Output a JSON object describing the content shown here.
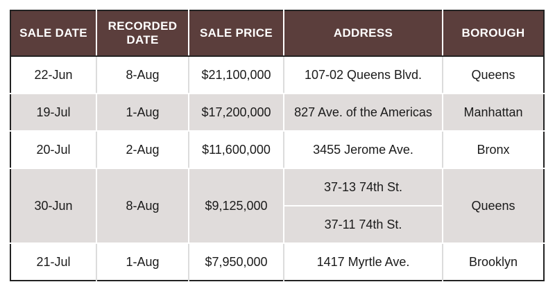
{
  "headers": {
    "sale_date": "SALE DATE",
    "recorded_date_line1": "RECORDED",
    "recorded_date_line2": "DATE",
    "sale_price": "SALE PRICE",
    "address": "ADDRESS",
    "borough": "BOROUGH"
  },
  "rows": [
    {
      "sale_date": "22-Jun",
      "recorded_date": "8-Aug",
      "sale_price": "$21,100,000",
      "address": "107-02 Queens Blvd.",
      "borough": "Queens"
    },
    {
      "sale_date": "19-Jul",
      "recorded_date": "1-Aug",
      "sale_price": "$17,200,000",
      "address": "827 Ave. of the Americas",
      "borough": "Manhattan"
    },
    {
      "sale_date": "20-Jul",
      "recorded_date": "2-Aug",
      "sale_price": "$11,600,000",
      "address": "3455 Jerome Ave.",
      "borough": "Bronx"
    },
    {
      "sale_date": "30-Jun",
      "recorded_date": "8-Aug",
      "sale_price": "$9,125,000",
      "address_1": "37-13 74th St.",
      "address_2": "37-11 74th St.",
      "borough": "Queens"
    },
    {
      "sale_date": "21-Jul",
      "recorded_date": "1-Aug",
      "sale_price": "$7,950,000",
      "address": "1417 Myrtle Ave.",
      "borough": "Brooklyn"
    }
  ],
  "colors": {
    "header_bg": "#5b3e3c",
    "shaded_row": "#e0dcdb"
  }
}
